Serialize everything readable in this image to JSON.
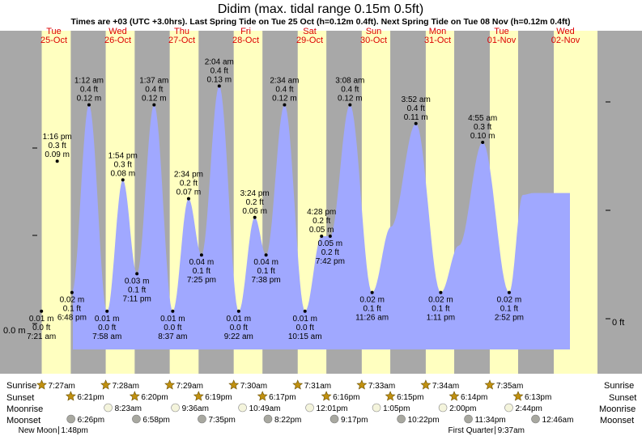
{
  "title": "Didim (max. tidal range 0.15m 0.5ft)",
  "subtitle": "Times are +03 (UTC +3.0hrs). Last Spring Tide on Tue 25 Oct (h=0.12m 0.4ft). Next Spring Tide on Tue 08 Nov (h=0.12m 0.4ft)",
  "colors": {
    "night": "#a8a8a8",
    "day": "#ffffc0",
    "tide": "#a0a8ff",
    "day_label": "#dd0000",
    "sun_star": "#c09010",
    "moon": "#c8c8a8",
    "moonset": "#a8a8a0"
  },
  "y_axis_left": {
    "label": "0.0 m"
  },
  "y_axis_right": {
    "label": "0 ft"
  },
  "row_labels": {
    "sunrise": "Sunrise",
    "sunset": "Sunset",
    "moonrise": "Moonrise",
    "moonset": "Moonset"
  },
  "chart_data": {
    "type": "area",
    "unit": "m",
    "ylim": [
      -0.015,
      0.155
    ],
    "days": [
      {
        "dow": "Tue",
        "date": "25-Oct"
      },
      {
        "dow": "Wed",
        "date": "26-Oct"
      },
      {
        "dow": "Thu",
        "date": "27-Oct"
      },
      {
        "dow": "Fri",
        "date": "28-Oct"
      },
      {
        "dow": "Sat",
        "date": "29-Oct"
      },
      {
        "dow": "Sun",
        "date": "30-Oct"
      },
      {
        "dow": "Mon",
        "date": "31-Oct"
      },
      {
        "dow": "Tue",
        "date": "01-Nov"
      },
      {
        "dow": "Wed",
        "date": "02-Nov"
      }
    ],
    "daylight": [
      {
        "rise": "7:27",
        "set": "18:21"
      },
      {
        "rise": "7:28",
        "set": "18:20"
      },
      {
        "rise": "7:29",
        "set": "18:19"
      },
      {
        "rise": "7:30",
        "set": "18:17"
      },
      {
        "rise": "7:31",
        "set": "18:16"
      },
      {
        "rise": "7:33",
        "set": "18:15"
      },
      {
        "rise": "7:34",
        "set": "18:14"
      },
      {
        "rise": "7:35",
        "set": "18:13"
      },
      {
        "rise": "7:36",
        "set": "24:00"
      }
    ],
    "extremes": [
      {
        "day": 0,
        "time": "7:21",
        "label": "7:21 am",
        "m": 0.01,
        "m_label": "0.01 m",
        "ft_label": "0.0 ft",
        "type": "low"
      },
      {
        "day": 0,
        "time": "13:16",
        "label": "1:16 pm",
        "m": 0.09,
        "m_label": "0.09 m",
        "ft_label": "0.3 ft",
        "type": "high"
      },
      {
        "day": 0,
        "time": "18:48",
        "label": "6:48 pm",
        "m": 0.02,
        "m_label": "0.02 m",
        "ft_label": "0.1 ft",
        "type": "low"
      },
      {
        "day": 1,
        "time": "1:12",
        "label": "1:12 am",
        "m": 0.12,
        "m_label": "0.12 m",
        "ft_label": "0.4 ft",
        "type": "high"
      },
      {
        "day": 1,
        "time": "7:58",
        "label": "7:58 am",
        "m": 0.01,
        "m_label": "0.01 m",
        "ft_label": "0.0 ft",
        "type": "low"
      },
      {
        "day": 1,
        "time": "13:54",
        "label": "1:54 pm",
        "m": 0.08,
        "m_label": "0.08 m",
        "ft_label": "0.3 ft",
        "type": "high"
      },
      {
        "day": 1,
        "time": "19:11",
        "label": "7:11 pm",
        "m": 0.03,
        "m_label": "0.03 m",
        "ft_label": "0.1 ft",
        "type": "low"
      },
      {
        "day": 2,
        "time": "1:37",
        "label": "1:37 am",
        "m": 0.12,
        "m_label": "0.12 m",
        "ft_label": "0.4 ft",
        "type": "high"
      },
      {
        "day": 2,
        "time": "8:37",
        "label": "8:37 am",
        "m": 0.01,
        "m_label": "0.01 m",
        "ft_label": "0.0 ft",
        "type": "low"
      },
      {
        "day": 2,
        "time": "14:34",
        "label": "2:34 pm",
        "m": 0.07,
        "m_label": "0.07 m",
        "ft_label": "0.2 ft",
        "type": "high"
      },
      {
        "day": 2,
        "time": "19:25",
        "label": "7:25 pm",
        "m": 0.04,
        "m_label": "0.04 m",
        "ft_label": "0.1 ft",
        "type": "low"
      },
      {
        "day": 3,
        "time": "2:04",
        "label": "2:04 am",
        "m": 0.13,
        "m_label": "0.13 m",
        "ft_label": "0.4 ft",
        "type": "high"
      },
      {
        "day": 3,
        "time": "9:22",
        "label": "9:22 am",
        "m": 0.01,
        "m_label": "0.01 m",
        "ft_label": "0.0 ft",
        "type": "low"
      },
      {
        "day": 3,
        "time": "15:24",
        "label": "3:24 pm",
        "m": 0.06,
        "m_label": "0.06 m",
        "ft_label": "0.2 ft",
        "type": "high"
      },
      {
        "day": 3,
        "time": "19:38",
        "label": "7:38 pm",
        "m": 0.04,
        "m_label": "0.04 m",
        "ft_label": "0.1 ft",
        "type": "low"
      },
      {
        "day": 4,
        "time": "2:34",
        "label": "2:34 am",
        "m": 0.12,
        "m_label": "0.12 m",
        "ft_label": "0.4 ft",
        "type": "high"
      },
      {
        "day": 4,
        "time": "10:15",
        "label": "10:15 am",
        "m": 0.01,
        "m_label": "0.01 m",
        "ft_label": "0.0 ft",
        "type": "low"
      },
      {
        "day": 4,
        "time": "16:28",
        "label": "4:28 pm",
        "m": 0.05,
        "m_label": "0.05 m",
        "ft_label": "0.2 ft",
        "type": "high"
      },
      {
        "day": 4,
        "time": "19:42",
        "label": "7:42 pm",
        "m": 0.05,
        "m_label": "0.05 m",
        "ft_label": "0.2 ft",
        "type": "low"
      },
      {
        "day": 5,
        "time": "3:08",
        "label": "3:08 am",
        "m": 0.12,
        "m_label": "0.12 m",
        "ft_label": "0.4 ft",
        "type": "high"
      },
      {
        "day": 5,
        "time": "11:26",
        "label": "11:26 am",
        "m": 0.02,
        "m_label": "0.02 m",
        "ft_label": "0.1 ft",
        "type": "low"
      },
      {
        "day": 6,
        "time": "3:52",
        "label": "3:52 am",
        "m": 0.11,
        "m_label": "0.11 m",
        "ft_label": "0.4 ft",
        "type": "high"
      },
      {
        "day": 6,
        "time": "13:11",
        "label": "1:11 pm",
        "m": 0.02,
        "m_label": "0.02 m",
        "ft_label": "0.1 ft",
        "type": "low"
      },
      {
        "day": 7,
        "time": "4:55",
        "label": "4:55 am",
        "m": 0.1,
        "m_label": "0.10 m",
        "ft_label": "0.3 ft",
        "type": "high"
      },
      {
        "day": 7,
        "time": "14:52",
        "label": "2:52 pm",
        "m": 0.02,
        "m_label": "0.02 m",
        "ft_label": "0.1 ft",
        "type": "low"
      }
    ],
    "curve_extra": [
      {
        "day": 0,
        "time": "0:00",
        "m": 0.085
      },
      {
        "day": 5,
        "time": "18:30",
        "m": 0.055
      },
      {
        "day": 6,
        "time": "20:00",
        "m": 0.045
      },
      {
        "day": 7,
        "time": "20:00",
        "m": 0.072
      },
      {
        "day": 8,
        "time": "0:00",
        "m": 0.073
      }
    ]
  },
  "astro": {
    "sunrise": [
      "7:27am",
      "7:28am",
      "7:29am",
      "7:30am",
      "7:31am",
      "7:33am",
      "7:34am",
      "7:35am"
    ],
    "sunset": [
      "6:21pm",
      "6:20pm",
      "6:19pm",
      "6:17pm",
      "6:16pm",
      "6:15pm",
      "6:14pm",
      "6:13pm"
    ],
    "moonrise": [
      {
        "day": 1,
        "time": "8:23",
        "label": "8:23am"
      },
      {
        "day": 2,
        "time": "9:36",
        "label": "9:36am"
      },
      {
        "day": 3,
        "time": "10:49",
        "label": "10:49am"
      },
      {
        "day": 4,
        "time": "12:01",
        "label": "12:01pm"
      },
      {
        "day": 5,
        "time": "13:05",
        "label": "1:05pm"
      },
      {
        "day": 6,
        "time": "14:00",
        "label": "2:00pm"
      },
      {
        "day": 7,
        "time": "14:44",
        "label": "2:44pm"
      }
    ],
    "moonset": [
      {
        "day": 0,
        "time": "18:26",
        "label": "6:26pm"
      },
      {
        "day": 1,
        "time": "18:58",
        "label": "6:58pm"
      },
      {
        "day": 2,
        "time": "19:35",
        "label": "7:35pm"
      },
      {
        "day": 3,
        "time": "20:22",
        "label": "8:22pm"
      },
      {
        "day": 4,
        "time": "21:17",
        "label": "9:17pm"
      },
      {
        "day": 5,
        "time": "22:22",
        "label": "10:22pm"
      },
      {
        "day": 6,
        "time": "23:34",
        "label": "11:34pm"
      },
      {
        "day": 8,
        "time": "0:46",
        "label": "12:46am"
      }
    ],
    "moon_phases": [
      {
        "day": 0,
        "time": "13:48",
        "name": "New Moon",
        "time_label": "1:48pm"
      },
      {
        "day": 7,
        "time": "9:37",
        "name": "First Quarter",
        "time_label": "9:37am"
      }
    ]
  }
}
